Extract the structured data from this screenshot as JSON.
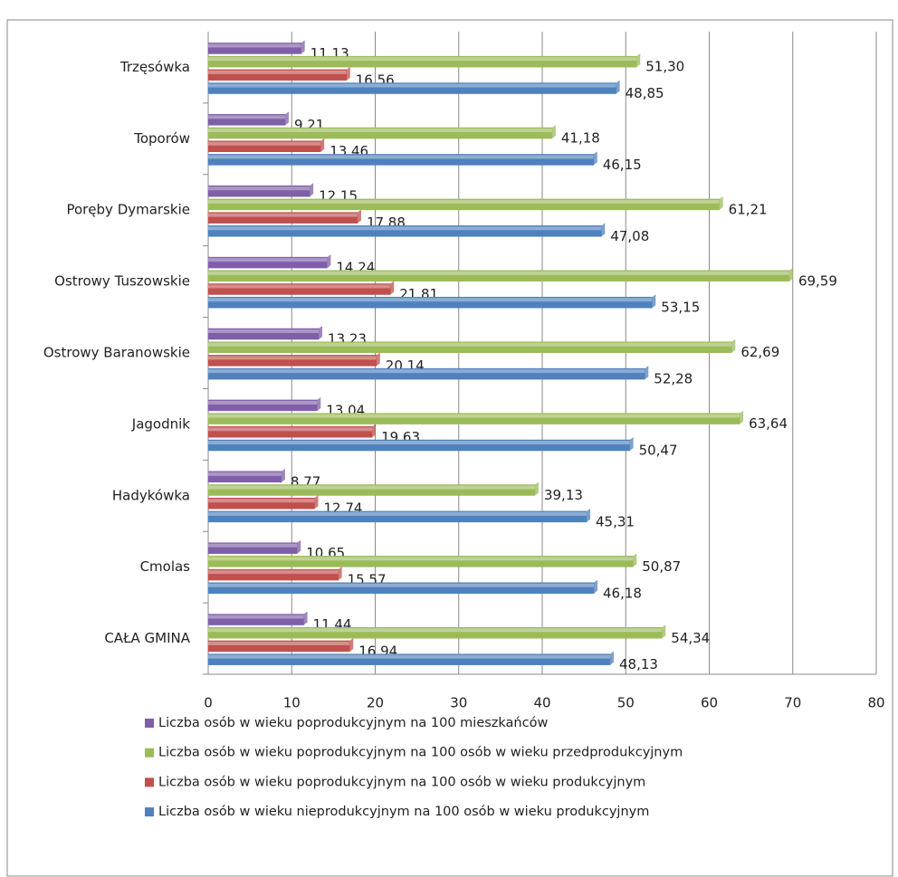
{
  "chart_data": {
    "type": "hbar",
    "categories": [
      "CAŁA GMINA",
      "Cmolas",
      "Hadykówka",
      "Jagodnik",
      "Ostrowy Baranowskie",
      "Ostrowy Tuszowskie",
      "Poręby Dymarskie",
      "Toporów",
      "Trzęsówka"
    ],
    "series": [
      {
        "name": "Liczba osób w wieku poprodukcyjnym na 100 mieszkańców",
        "color": "#7f5fa8",
        "values": [
          11.44,
          10.65,
          8.77,
          13.04,
          13.23,
          14.24,
          12.15,
          9.21,
          11.13
        ],
        "value_labels": [
          "11,44",
          "10,65",
          "8,77",
          "13,04",
          "13,23",
          "14,24",
          "12,15",
          "9,21",
          "11,13"
        ]
      },
      {
        "name": "Liczba osób w wieku poprodukcyjnym na 100 osób w wieku przedprodukcyjnym",
        "color": "#9bbb59",
        "values": [
          54.34,
          50.87,
          39.13,
          63.64,
          62.69,
          69.59,
          61.21,
          41.18,
          51.3
        ],
        "value_labels": [
          "54,34",
          "50,87",
          "39,13",
          "63,64",
          "62,69",
          "69,59",
          "61,21",
          "41,18",
          "51,30"
        ]
      },
      {
        "name": "Liczba osób w wieku poprodukcyjnym na 100 osób w wieku produkcyjnym",
        "color": "#c0504d",
        "values": [
          16.94,
          15.57,
          12.74,
          19.63,
          20.14,
          21.81,
          17.88,
          13.46,
          16.56
        ],
        "value_labels": [
          "16,94",
          "15,57",
          "12,74",
          "19,63",
          "20,14",
          "21,81",
          "17,88",
          "13,46",
          "16,56"
        ]
      },
      {
        "name": "Liczba osób w wieku nieprodukcyjnym na 100 osób w wieku produkcyjnym",
        "color": "#4f81bd",
        "values": [
          48.13,
          46.18,
          45.31,
          50.47,
          52.28,
          53.15,
          47.08,
          46.15,
          48.85
        ],
        "value_labels": [
          "48,13",
          "46,18",
          "45,31",
          "50,47",
          "52,28",
          "53,15",
          "47,08",
          "46,15",
          "48,85"
        ]
      }
    ],
    "xlim": [
      0,
      80
    ],
    "xticks": [
      0,
      10,
      20,
      30,
      40,
      50,
      60,
      70,
      80
    ],
    "grid": true
  }
}
